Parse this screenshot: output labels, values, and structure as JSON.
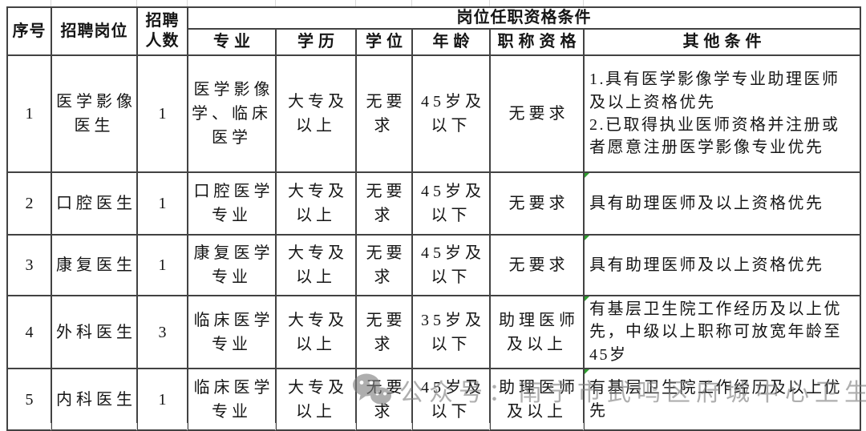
{
  "table": {
    "header": {
      "col_no": "序号",
      "col_position": "招聘岗位",
      "col_count": "招聘\n人数",
      "col_qualification": "岗位任职资格条件",
      "sub": [
        "专业",
        "学历",
        "学位",
        "年龄",
        "职称资格",
        "其他条件"
      ]
    },
    "rows": [
      {
        "no": "1",
        "position": "医学影像\n医生",
        "count": "1",
        "major": "医学影像\n学、临床\n医学",
        "education": "大专及\n以上",
        "degree": "无要\n求",
        "age": "45岁及\n以下",
        "title": "无要求",
        "other": "1.具有医学影像学专业助理医师及以上资格优先\n2.已取得执业医师资格并注册或者愿意注册医学影像专业优先"
      },
      {
        "no": "2",
        "position": "口腔医生",
        "count": "1",
        "major": "口腔医学\n专业",
        "education": "大专及\n以上",
        "degree": "无要\n求",
        "age": "45岁及\n以下",
        "title": "无要求",
        "other": "具有助理医师及以上资格优先"
      },
      {
        "no": "3",
        "position": "康复医生",
        "count": "1",
        "major": "康复医学\n专业",
        "education": "大专及\n以上",
        "degree": "无要\n求",
        "age": "45岁及\n以下",
        "title": "无要求",
        "other": "具有助理医师及以上资格优先"
      },
      {
        "no": "4",
        "position": "外科医生",
        "count": "3",
        "major": "临床医学\n专业",
        "education": "大专及\n以上",
        "degree": "无要\n求",
        "age": "35岁及\n以下",
        "title": "助理医师\n及以上",
        "other": "有基层卫生院工作经历及以上优先，中级以上职称可放宽年龄至45岁"
      },
      {
        "no": "5",
        "position": "内科医生",
        "count": "1",
        "major": "临床医学\n专业",
        "education": "大专及\n以上",
        "degree": "无要\n求",
        "age": "45岁及\n以下",
        "title": "助理医师\n及以上",
        "other": "有基层卫生院工作经历及以上优先"
      }
    ]
  },
  "watermark": {
    "icon": "wechat-icon",
    "text": "公众号：南宁市武鸣区府城中心卫生院"
  },
  "colors": {
    "border": "#424242",
    "text": "#151515",
    "watermark_gray": "#7d7d7d",
    "flag_green": "#2f9e2f",
    "gridline": "#d9d9d9"
  }
}
